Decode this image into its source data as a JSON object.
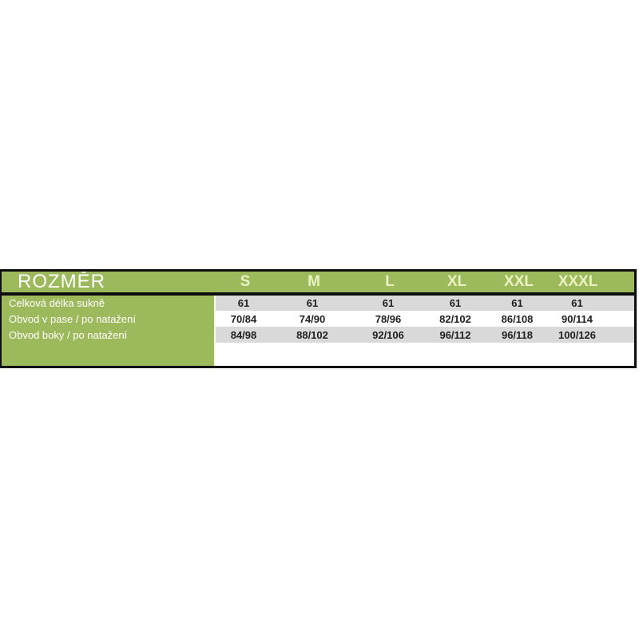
{
  "page": {
    "background": "#ffffff"
  },
  "chart_data": {
    "type": "table",
    "title": "ROZMĚR",
    "categories": [
      "S",
      "M",
      "L",
      "XL",
      "XXL",
      "XXXL"
    ],
    "rows": [
      {
        "label": "Celková délka sukně",
        "values": [
          "61",
          "61",
          "61",
          "61",
          "61",
          "61"
        ]
      },
      {
        "label": "Obvod v pase / po natažení",
        "values": [
          "70/84",
          "74/90",
          "78/96",
          "82/102",
          "86/108",
          "90/114"
        ]
      },
      {
        "label": "Obvod boky / po natažení",
        "values": [
          "84/98",
          "88/102",
          "92/106",
          "96/112",
          "96/118",
          "100/126"
        ]
      }
    ],
    "layout_hints": {
      "header_background": "green",
      "row_striping": [
        "gray",
        "white",
        "gray"
      ],
      "grid": "outer black border, thick black rule under header"
    }
  },
  "colors": {
    "table-green": "#9cba5b",
    "size-header-text": "#eaf2c4",
    "title-text": "#ffffff",
    "stripe-gray": "#d9d9d9",
    "value-text": "#1f1f1f",
    "border-black": "#0d0d0d"
  }
}
